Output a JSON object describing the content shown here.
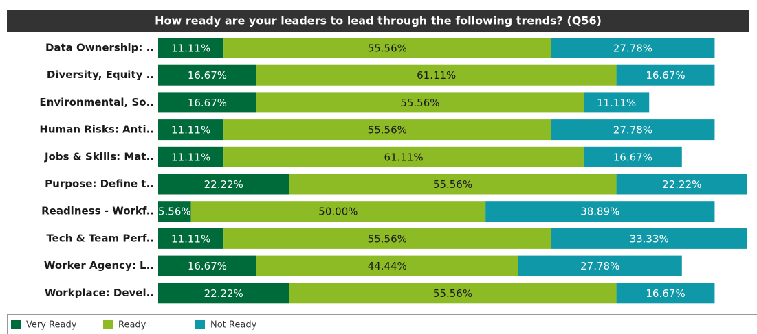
{
  "chart_data": {
    "type": "stacked_bar_horizontal",
    "title": "How ready are your leaders to lead through the following trends? (Q56)",
    "categories": [
      "Data Ownership: ..",
      "Diversity, Equity ..",
      "Environmental, So..",
      "Human Risks: Anti..",
      "Jobs & Skills: Mat..",
      "Purpose: Define t..",
      "Readiness - Workf..",
      "Tech & Team Perf..",
      "Worker Agency: L..",
      "Workplace: Devel.."
    ],
    "xlim": [
      0,
      100
    ],
    "legend": "bottom-left",
    "series": [
      {
        "name": "Very Ready",
        "color": "#006b3a",
        "values": [
          11.11,
          16.67,
          16.67,
          11.11,
          11.11,
          22.22,
          5.56,
          11.11,
          16.67,
          22.22
        ],
        "value_labels": [
          "11.11%",
          "16.67%",
          "16.67%",
          "11.11%",
          "11.11%",
          "22.22%",
          "5.56%",
          "11.11%",
          "16.67%",
          "22.22%"
        ]
      },
      {
        "name": "Ready",
        "color": "#8dbb25",
        "values": [
          55.56,
          61.11,
          55.56,
          55.56,
          61.11,
          55.56,
          50.0,
          55.56,
          44.44,
          55.56
        ],
        "value_labels": [
          "55.56%",
          "61.11%",
          "55.56%",
          "55.56%",
          "61.11%",
          "55.56%",
          "50.00%",
          "55.56%",
          "44.44%",
          "55.56%"
        ]
      },
      {
        "name": "Not Ready",
        "color": "#0e98a8",
        "values": [
          27.78,
          16.67,
          11.11,
          27.78,
          16.67,
          22.22,
          38.89,
          33.33,
          27.78,
          16.67
        ],
        "value_labels": [
          "27.78%",
          "16.67%",
          "11.11%",
          "27.78%",
          "16.67%",
          "22.22%",
          "38.89%",
          "33.33%",
          "27.78%",
          "16.67%"
        ]
      }
    ]
  }
}
